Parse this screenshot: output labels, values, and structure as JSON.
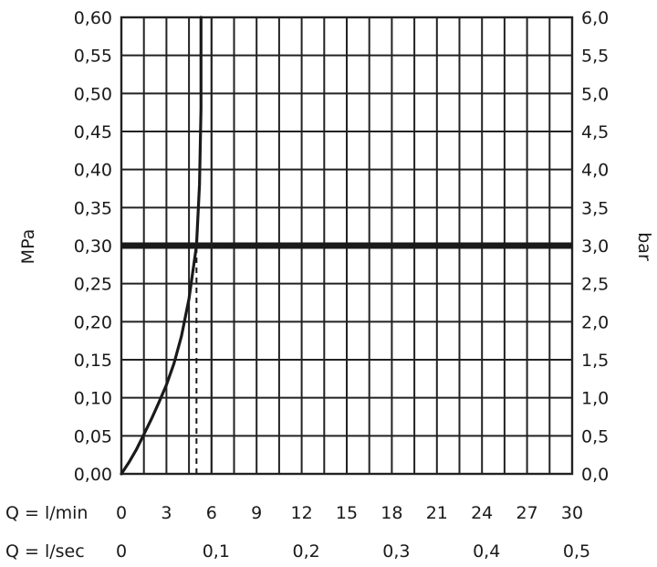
{
  "chart_data": {
    "type": "line",
    "y_left": {
      "label": "MPa",
      "ticks": [
        "0,00",
        "0,05",
        "0,10",
        "0,15",
        "0,20",
        "0,25",
        "0,30",
        "0,35",
        "0,40",
        "0,45",
        "0,50",
        "0,55",
        "0,60"
      ],
      "ylim": [
        0,
        0.6
      ]
    },
    "y_right": {
      "label": "bar",
      "ticks": [
        "0,0",
        "0,5",
        "1,0",
        "1,5",
        "2,0",
        "2,5",
        "3,0",
        "3,5",
        "4,0",
        "4,5",
        "5,0",
        "5,5",
        "6,0"
      ],
      "ylim": [
        0,
        6
      ]
    },
    "x_primary": {
      "label": "Q = l/min",
      "ticks": [
        "0",
        "3",
        "6",
        "9",
        "12",
        "15",
        "18",
        "21",
        "24",
        "27",
        "30"
      ],
      "xlim": [
        0,
        30
      ]
    },
    "x_secondary": {
      "label": "Q = l/sec",
      "ticks": [
        "0",
        "0,1",
        "0,2",
        "0,3",
        "0,4",
        "0,5"
      ]
    },
    "grid": true,
    "series": [
      {
        "x": [
          0,
          0.5,
          1.0,
          1.5,
          2.0,
          2.5,
          3.0,
          3.5,
          4.0,
          4.5,
          5.0,
          5.2,
          5.3,
          5.3
        ],
        "values": [
          0.0,
          0.015,
          0.032,
          0.052,
          0.072,
          0.094,
          0.117,
          0.145,
          0.181,
          0.23,
          0.3,
          0.38,
          0.48,
          0.6
        ]
      }
    ],
    "reference_lines": [
      {
        "axis": "y",
        "value": 0.3,
        "style": "thick"
      },
      {
        "axis": "x",
        "value": 5.0,
        "from": 0,
        "to": 0.3,
        "style": "dashed"
      },
      {
        "axis": "x",
        "value": 6.0,
        "style": "solid-thin"
      }
    ]
  }
}
